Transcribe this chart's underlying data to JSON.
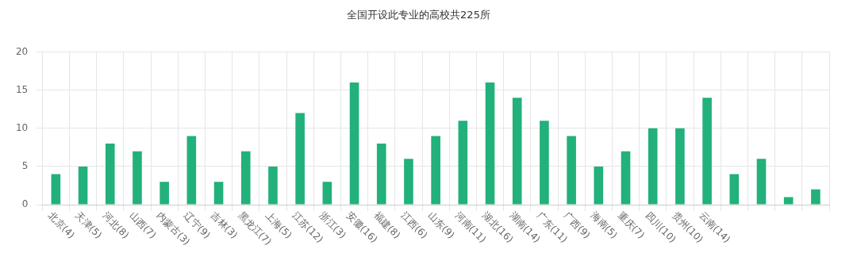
{
  "chart_data": {
    "type": "bar",
    "title": "全国开设此专业的高校共225所",
    "categories": [
      "北京(4)",
      "天津(5)",
      "河北(8)",
      "山西(7)",
      "内蒙古(3)",
      "辽宁(9)",
      "吉林(3)",
      "黑龙江(7)",
      "上海(5)",
      "江苏(12)",
      "浙江(3)",
      "安徽(16)",
      "福建(8)",
      "江西(6)",
      "山东(9)",
      "河南(11)",
      "湖北(16)",
      "湖南(14)",
      "广东(11)",
      "广西(9)",
      "海南(5)",
      "重庆(7)",
      "四川(10)",
      "贵州(10)",
      "云南(14)",
      null,
      null,
      null,
      null
    ],
    "values": [
      4,
      5,
      8,
      7,
      3,
      9,
      3,
      7,
      5,
      12,
      3,
      16,
      8,
      6,
      9,
      11,
      16,
      14,
      11,
      9,
      5,
      7,
      10,
      10,
      14,
      4,
      6,
      1,
      2
    ],
    "color": "#22b17a",
    "ylim": [
      0,
      20
    ],
    "yticks": [
      0,
      5,
      10,
      15,
      20
    ],
    "grid": true
  }
}
